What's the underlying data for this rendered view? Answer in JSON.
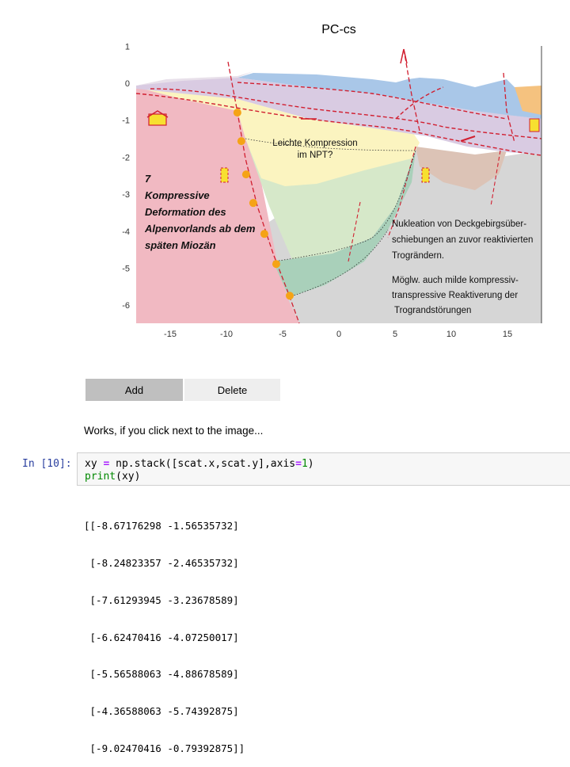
{
  "figure": {
    "title": "PC-cs",
    "y_ticks": [
      "1",
      "0",
      "-1",
      "-2",
      "-3",
      "-4",
      "-5",
      "-6"
    ],
    "x_ticks": [
      "-15",
      "-10",
      "-5",
      "0",
      "5",
      "10",
      "15"
    ],
    "annotation_main": [
      "7",
      "Kompressive",
      "Deformation des",
      "Alpenvorlands ab dem",
      "späten Miozän"
    ],
    "annotation_center": [
      "Leichte Kompression",
      "im NPT?"
    ],
    "annotation_right1": [
      "Nukleation von Deckgebirgsüber-",
      "schiebungen an zuvor reaktivierten",
      "Trogrändern."
    ],
    "annotation_right2": [
      "Möglw. auch milde kompressiv-",
      "transpressive Reaktiverung der",
      "Trograndstörungen"
    ]
  },
  "buttons": {
    "add_label": "Add",
    "delete_label": "Delete"
  },
  "note": "Works, if you click next to the image...",
  "cell": {
    "prompt": "In [10]:",
    "line1": {
      "a": "xy ",
      "eq": "=",
      "b": " np.stack([scat.x,scat.y],axis",
      "eq2": "=",
      "num": "1",
      "c": ")"
    },
    "line2": {
      "fn": "print",
      "c": "(xy)"
    }
  },
  "output_lines": [
    "[[-8.67176298 -1.56535732]",
    " [-8.24823357 -2.46535732]",
    " [-7.61293945 -3.23678589]",
    " [-6.62470416 -4.07250017]",
    " [-5.56588063 -4.88678589]",
    " [-4.36588063 -5.74392875]",
    " [-9.02470416 -0.79392875]]"
  ],
  "colors": {
    "crystalline": "#f1b9c2",
    "sediment_yellow": "#fbf4c0",
    "purple": "#d9cbe2",
    "blue": "#a9c7e8",
    "orange": "#f5c27f",
    "green": "#d6e8c9",
    "teal": "#a9d0ba",
    "grey": "#d6d6d6",
    "point": "#f5a316",
    "fault": "#d11f30"
  }
}
